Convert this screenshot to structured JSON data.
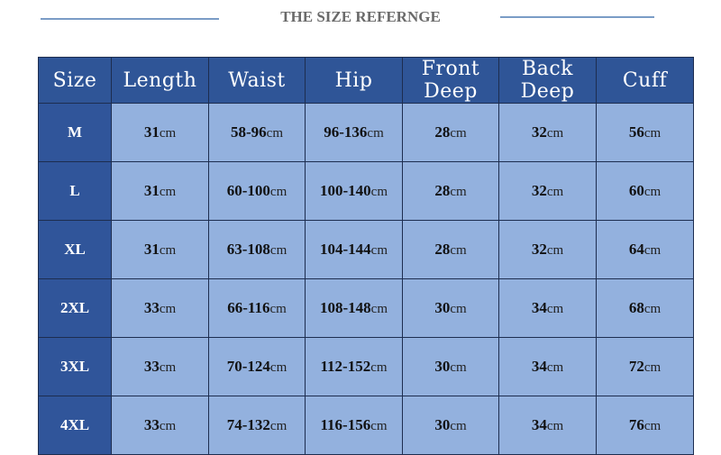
{
  "title": "THE SIZE REFERNGE",
  "table": {
    "header": [
      "Size",
      "Length",
      "Waist",
      "Hip",
      "Front Deep",
      "Back Deep",
      "Cuff"
    ],
    "rows": [
      [
        "M",
        {
          "num": "31",
          "unit": "cm"
        },
        {
          "num": "58-96",
          "unit": "cm"
        },
        {
          "num": "96-136",
          "unit": "cm"
        },
        {
          "num": "28",
          "unit": "cm"
        },
        {
          "num": "32",
          "unit": "cm"
        },
        {
          "num": "56",
          "unit": "cm"
        }
      ],
      [
        "L",
        {
          "num": "31",
          "unit": "cm"
        },
        {
          "num": "60-100",
          "unit": "cm"
        },
        {
          "num": "100-140",
          "unit": "cm"
        },
        {
          "num": "28",
          "unit": "cm"
        },
        {
          "num": "32",
          "unit": "cm"
        },
        {
          "num": "60",
          "unit": "cm"
        }
      ],
      [
        "XL",
        {
          "num": "31",
          "unit": "cm"
        },
        {
          "num": "63-108",
          "unit": "cm"
        },
        {
          "num": "104-144",
          "unit": "cm"
        },
        {
          "num": "28",
          "unit": "cm"
        },
        {
          "num": "32",
          "unit": "cm"
        },
        {
          "num": "64",
          "unit": "cm"
        }
      ],
      [
        "2XL",
        {
          "num": "33",
          "unit": "cm"
        },
        {
          "num": "66-116",
          "unit": "cm"
        },
        {
          "num": "108-148",
          "unit": "cm"
        },
        {
          "num": "30",
          "unit": "cm"
        },
        {
          "num": "34",
          "unit": "cm"
        },
        {
          "num": "68",
          "unit": "cm"
        }
      ],
      [
        "3XL",
        {
          "num": "33",
          "unit": "cm"
        },
        {
          "num": "70-124",
          "unit": "cm"
        },
        {
          "num": "112-152",
          "unit": "cm"
        },
        {
          "num": "30",
          "unit": "cm"
        },
        {
          "num": "34",
          "unit": "cm"
        },
        {
          "num": "72",
          "unit": "cm"
        }
      ],
      [
        "4XL",
        {
          "num": "33",
          "unit": "cm"
        },
        {
          "num": "74-132",
          "unit": "cm"
        },
        {
          "num": "116-156",
          "unit": "cm"
        },
        {
          "num": "30",
          "unit": "cm"
        },
        {
          "num": "34",
          "unit": "cm"
        },
        {
          "num": "76",
          "unit": "cm"
        }
      ]
    ]
  }
}
